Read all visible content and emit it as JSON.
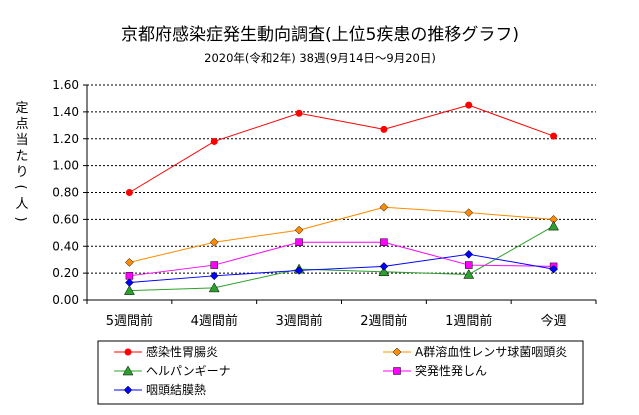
{
  "chart_data": {
    "type": "line",
    "title": "京都府感染症発生動向調査(上位5疾患の推移グラフ)",
    "subtitle": "2020年(令和2年) 38週(9月14日～9月20日)",
    "ylabel": "定点当たり(人)",
    "xlabel": "",
    "ylim": [
      0,
      1.6
    ],
    "ytick_step": 0.2,
    "yticks": [
      "0.00",
      "0.20",
      "0.40",
      "0.60",
      "0.80",
      "1.00",
      "1.20",
      "1.40",
      "1.60"
    ],
    "grid": true,
    "legend_position": "bottom",
    "categories": [
      "5週間前",
      "4週間前",
      "3週間前",
      "2週間前",
      "1週間前",
      "今週"
    ],
    "series": [
      {
        "name": "感染性胃腸炎",
        "color": "#ff0000",
        "marker": "circle",
        "values": [
          0.8,
          1.18,
          1.39,
          1.27,
          1.45,
          1.22
        ]
      },
      {
        "name": "A群溶血性レンサ球菌咽頭炎",
        "color": "#ff8c00",
        "marker": "diamond",
        "values": [
          0.28,
          0.43,
          0.52,
          0.69,
          0.65,
          0.6
        ]
      },
      {
        "name": "ヘルパンギーナ",
        "color": "#2ca02c",
        "marker": "triangle",
        "values": [
          0.07,
          0.09,
          0.23,
          0.21,
          0.19,
          0.55
        ]
      },
      {
        "name": "突発性発しん",
        "color": "#ff00ff",
        "marker": "square",
        "values": [
          0.18,
          0.26,
          0.43,
          0.43,
          0.26,
          0.25
        ]
      },
      {
        "name": "咽頭結膜熱",
        "color": "#0000ff",
        "marker": "diamond",
        "values": [
          0.13,
          0.18,
          0.22,
          0.25,
          0.34,
          0.23
        ]
      }
    ]
  }
}
